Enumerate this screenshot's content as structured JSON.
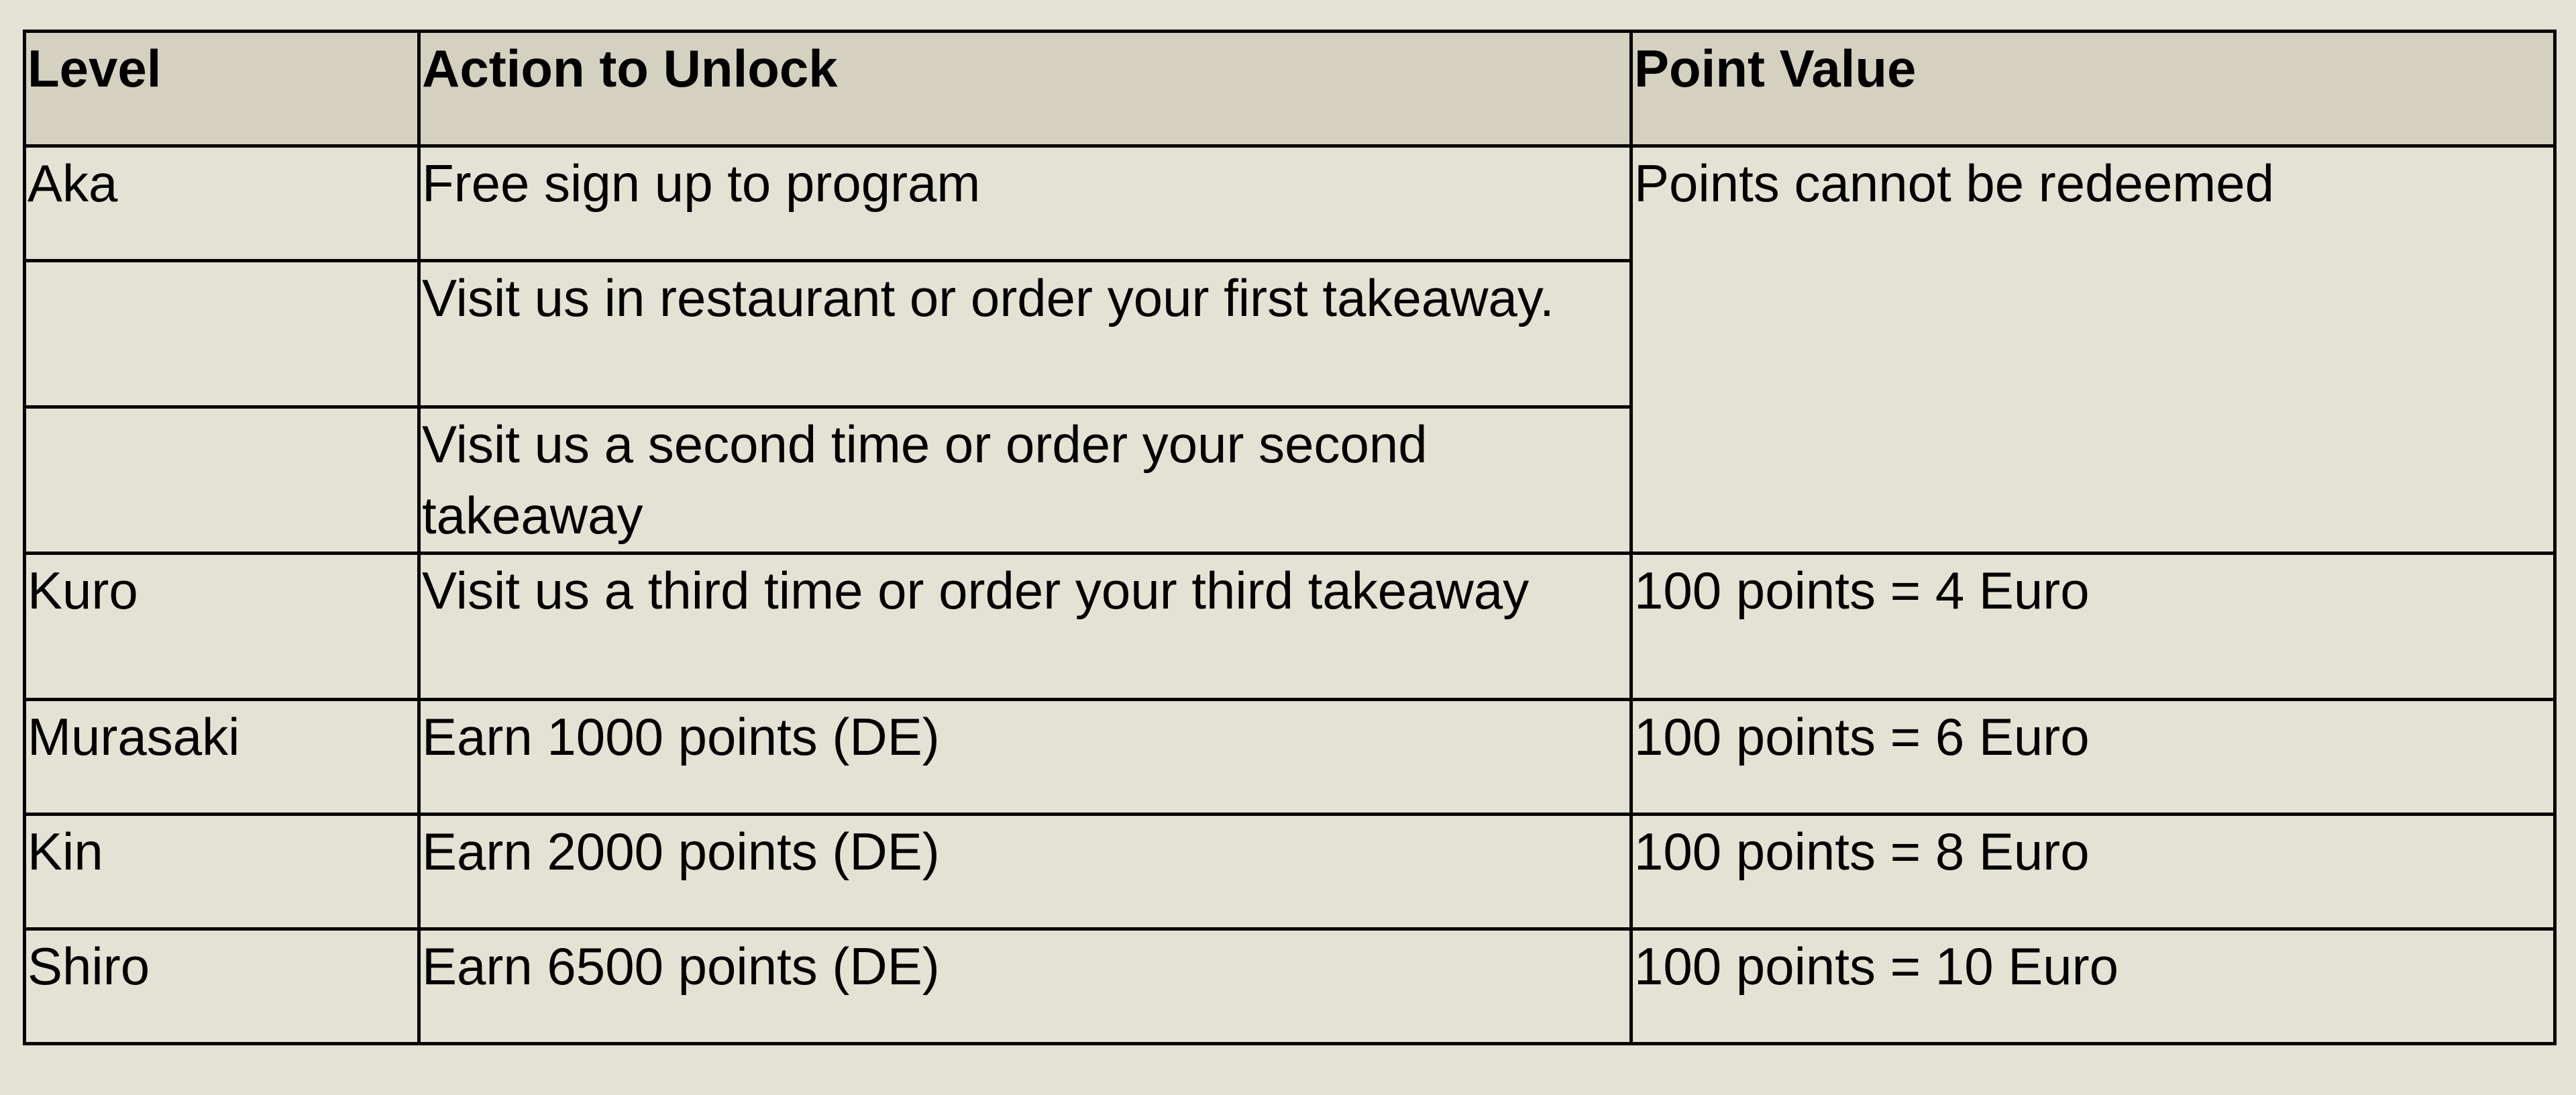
{
  "table": {
    "headers": [
      "Level",
      "Action to Unlock",
      "Point Value"
    ],
    "rows": [
      {
        "level": "Aka",
        "action": "Free sign up to program",
        "value": "Points cannot be redeemed"
      },
      {
        "level": "",
        "action": "Visit us in restaurant or order your first takeaway.",
        "value": null
      },
      {
        "level": "",
        "action": "Visit us a second time or order your second takeaway",
        "value": null
      },
      {
        "level": "Kuro",
        "action": "Visit us a third time or order your third takeaway",
        "value": "100 points = 4 Euro"
      },
      {
        "level": "Murasaki",
        "action": "Earn 1000 points (DE)",
        "value": "100 points = 6 Euro"
      },
      {
        "level": "Kin",
        "action": "Earn 2000 points (DE)",
        "value": "100 points = 8 Euro"
      },
      {
        "level": "Shiro",
        "action": "Earn 6500 points (DE)",
        "value": "100 points = 10 Euro"
      }
    ]
  }
}
